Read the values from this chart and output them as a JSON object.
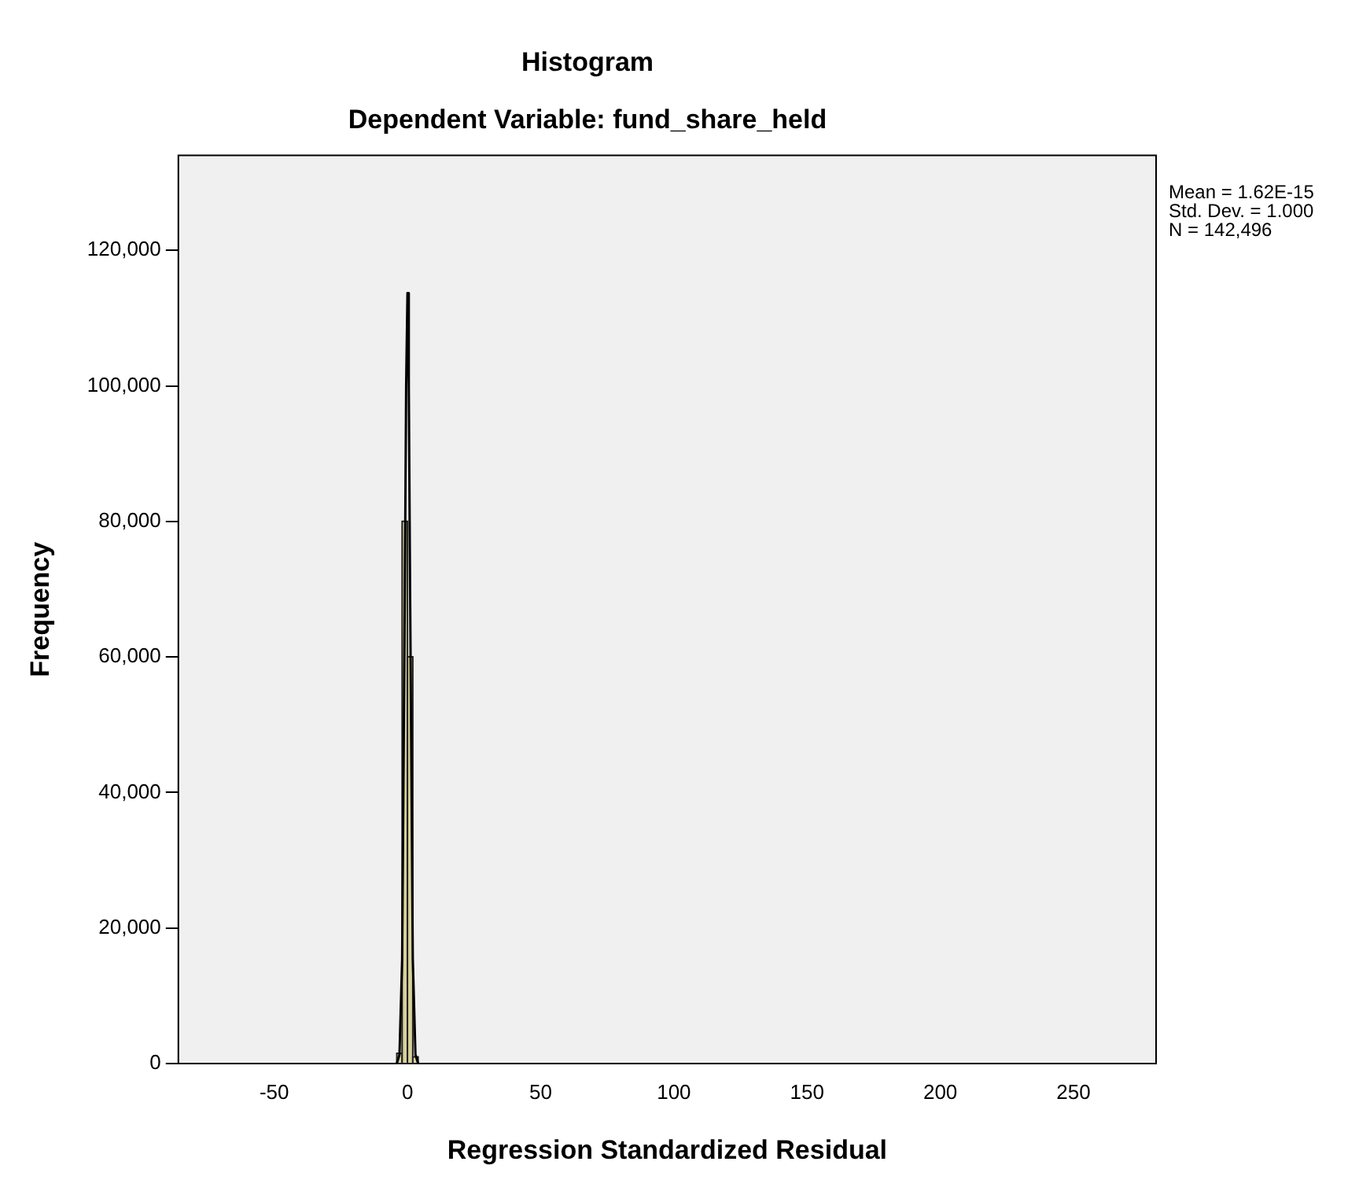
{
  "chart_data": {
    "type": "histogram",
    "title": "Histogram",
    "subtitle": "Dependent Variable: fund_share_held",
    "xlabel": "Regression Standardized Residual",
    "ylabel": "Frequency",
    "annotations": [
      "Mean = 1.62E-15",
      "Std. Dev. = 1.000",
      "N = 142,496"
    ],
    "bins": [
      -4,
      -2,
      0,
      2,
      4
    ],
    "values": [
      1500,
      80000,
      60000,
      1000
    ],
    "color": "#d8d29a",
    "xlim": [
      -86,
      281
    ],
    "xticks": [
      -50,
      0,
      50,
      100,
      150,
      200,
      250
    ],
    "ylim": [
      0,
      134000
    ],
    "yticks": [
      {
        "value": 0,
        "label": "0"
      },
      {
        "value": 20000,
        "label": "20,000"
      },
      {
        "value": 40000,
        "label": "40,000"
      },
      {
        "value": 60000,
        "label": "60,000"
      },
      {
        "value": 80000,
        "label": "80,000"
      },
      {
        "value": 100000,
        "label": "100,000"
      },
      {
        "value": 120000,
        "label": "120,000"
      }
    ],
    "series": [
      {
        "type": "line",
        "color": "#000000",
        "x": [
          -4,
          -3,
          -2,
          -1,
          -0.5,
          0,
          0.5,
          1,
          2,
          3,
          4
        ],
        "values": [
          0,
          1300,
          15400,
          69000,
          100000,
          113700,
          100000,
          69000,
          15400,
          1300,
          0
        ]
      }
    ],
    "grid": false,
    "legend": false
  }
}
